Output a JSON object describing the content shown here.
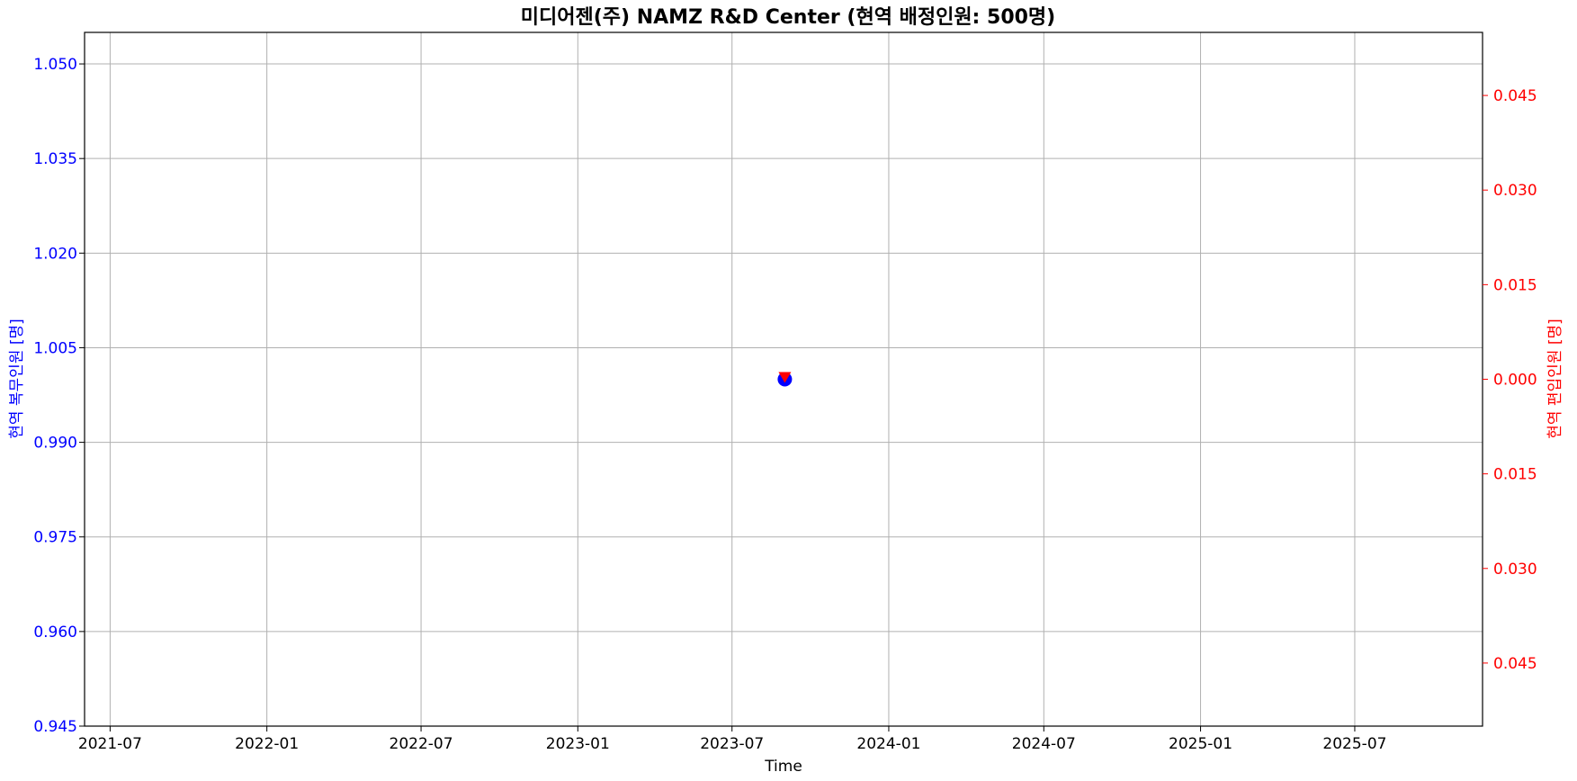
{
  "chart_data": {
    "type": "scatter",
    "title": "미디어젠(주) NAMZ R&D Center (현역 배정인원: 500명)",
    "xlabel": "Time",
    "ylabel_left": "현역 복무인원 [명]",
    "ylabel_right": "현역 편입인원 [명]",
    "xlim": [
      "2021-06-01",
      "2025-11-28"
    ],
    "x_ticks": [
      "2021-07-01",
      "2022-01-01",
      "2022-07-01",
      "2023-01-01",
      "2023-07-01",
      "2024-01-01",
      "2024-07-01",
      "2025-01-01",
      "2025-07-01"
    ],
    "x_tick_labels": [
      "2021-07",
      "2022-01",
      "2022-07",
      "2023-01",
      "2023-07",
      "2024-01",
      "2024-07",
      "2025-01",
      "2025-07"
    ],
    "ylim_left": [
      0.945,
      1.055
    ],
    "yticks_left": [
      0.945,
      0.96,
      0.975,
      0.99,
      1.005,
      1.02,
      1.035,
      1.05
    ],
    "ytick_labels_left": [
      "0.945",
      "0.960",
      "0.975",
      "0.990",
      "1.005",
      "1.020",
      "1.035",
      "1.050"
    ],
    "ylim_right": [
      -0.055,
      0.055
    ],
    "yticks_right": [
      -0.045,
      -0.03,
      -0.015,
      0.0,
      0.015,
      0.03,
      0.045
    ],
    "ytick_labels_right": [
      "0.045",
      "0.030",
      "0.015",
      "0.000",
      "0.015",
      "0.030",
      "0.045"
    ],
    "grid": true,
    "colors": {
      "left": "#0000ff",
      "right": "#ff0000",
      "grid": "#b0b0b0"
    },
    "series": [
      {
        "axis": "left",
        "marker": "circle",
        "color": "#0000ff",
        "points": [
          {
            "x": "2023-09-01",
            "y": 1.0
          }
        ]
      },
      {
        "axis": "right",
        "marker": "triangle-down",
        "color": "#ff0000",
        "points": [
          {
            "x": "2023-09-01",
            "y": 0.0
          }
        ]
      }
    ]
  }
}
